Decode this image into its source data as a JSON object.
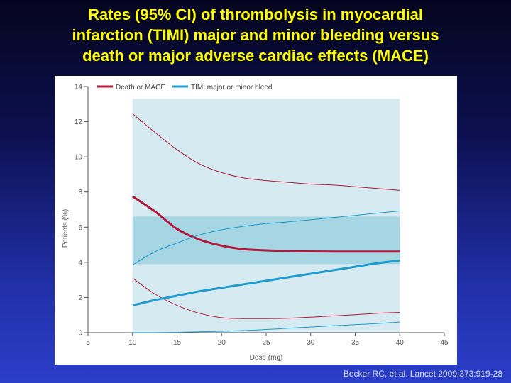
{
  "slide": {
    "title_lines": [
      "Rates (95% CI) of thrombolysis in myocardial",
      "infarction (TIMI) major and minor bleeding versus",
      "death or major adverse cardiac effects (MACE)"
    ],
    "citation": "Becker RC, et al. Lancet 2009;373:919-28"
  },
  "colors": {
    "background_top": "#05051f",
    "background_bottom": "#2b3ec8",
    "title": "#ffff00",
    "death_mace": "#b0183c",
    "timi_bleed": "#1f9ccc",
    "ci_band_outer": "#d6eaf2",
    "ci_band_inner": "#a6d6e4"
  },
  "chart_data": {
    "type": "line",
    "title": "",
    "xlabel": "Dose (mg)",
    "ylabel": "Patients (%)",
    "xlim": [
      5,
      45
    ],
    "ylim": [
      0,
      14
    ],
    "xticks": [
      5,
      10,
      15,
      20,
      25,
      30,
      35,
      40,
      45
    ],
    "yticks": [
      0,
      2,
      4,
      6,
      8,
      10,
      12,
      14
    ],
    "legend_position": "top-left",
    "legend": [
      "Death or MACE",
      "TIMI major or minor bleed"
    ],
    "shaded_regions": [
      {
        "x": [
          10,
          40
        ],
        "y": [
          0,
          13.3
        ],
        "color": "#d6eaf2"
      },
      {
        "x": [
          10,
          40
        ],
        "y": [
          3.9,
          6.6
        ],
        "color": "#a6d6e4"
      }
    ],
    "series": [
      {
        "name": "Death or MACE",
        "x": [
          10,
          12.5,
          15,
          17.5,
          20,
          22.5,
          25,
          27.5,
          30,
          32.5,
          35,
          37.5,
          40
        ],
        "y": [
          7.75,
          6.9,
          5.9,
          5.3,
          4.95,
          4.75,
          4.68,
          4.64,
          4.62,
          4.61,
          4.61,
          4.61,
          4.61
        ],
        "lower": [
          3.1,
          2.2,
          1.55,
          1.1,
          0.85,
          0.8,
          0.8,
          0.82,
          0.88,
          0.95,
          1.02,
          1.1,
          1.15
        ],
        "upper": [
          12.45,
          11.4,
          10.4,
          9.6,
          9.1,
          8.8,
          8.65,
          8.55,
          8.45,
          8.4,
          8.3,
          8.2,
          8.1
        ]
      },
      {
        "name": "TIMI major or minor bleed",
        "x": [
          10,
          12.5,
          15,
          17.5,
          20,
          22.5,
          25,
          27.5,
          30,
          32.5,
          35,
          37.5,
          40
        ],
        "y": [
          1.55,
          1.85,
          2.1,
          2.35,
          2.55,
          2.75,
          2.95,
          3.15,
          3.35,
          3.55,
          3.75,
          3.95,
          4.1
        ],
        "lower": [
          0.0,
          0.0,
          0.02,
          0.05,
          0.08,
          0.12,
          0.18,
          0.25,
          0.32,
          0.39,
          0.45,
          0.52,
          0.6
        ],
        "upper": [
          3.85,
          4.6,
          5.1,
          5.55,
          5.85,
          6.05,
          6.2,
          6.3,
          6.42,
          6.55,
          6.67,
          6.8,
          6.92
        ]
      }
    ]
  }
}
